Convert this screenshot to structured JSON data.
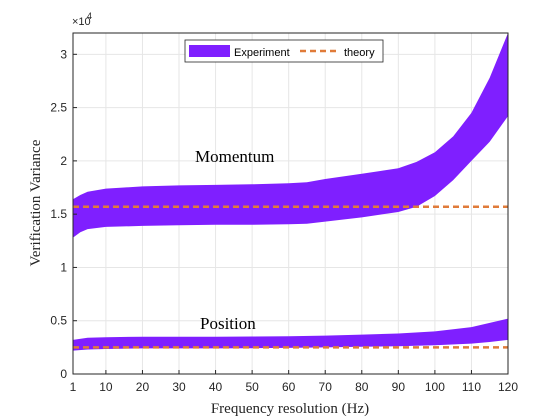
{
  "chart_data": {
    "type": "area",
    "xlabel": "Frequency resolution (Hz)",
    "ylabel": "Verification Variance",
    "exponent_label": "×10",
    "exponent_power": "4",
    "xlim": [
      1,
      120
    ],
    "ylim": [
      0,
      32000
    ],
    "x_ticks": [
      1,
      10,
      20,
      30,
      40,
      50,
      60,
      70,
      80,
      90,
      100,
      110,
      120
    ],
    "y_ticks": [
      0,
      5000,
      10000,
      15000,
      20000,
      25000,
      30000
    ],
    "y_tick_labels": [
      "0",
      "0.5",
      "1",
      "1.5",
      "2",
      "2.5",
      "3"
    ],
    "grid": true,
    "legend": {
      "placement": "top-center",
      "entries": [
        {
          "label": "Experiment",
          "color": "#7f1fff",
          "style": "band"
        },
        {
          "label": "theory",
          "color": "#e07b39",
          "style": "dashed"
        }
      ]
    },
    "annotations": [
      {
        "text": "Momentum",
        "x": 45,
        "y": 20600
      },
      {
        "text": "Position",
        "x": 40,
        "y": 4500
      }
    ],
    "series": [
      {
        "name": "Experiment",
        "group": "Momentum",
        "kind": "band",
        "color": "#7f1fff",
        "x": [
          1,
          3,
          5,
          10,
          15,
          20,
          30,
          40,
          50,
          60,
          65,
          70,
          80,
          90,
          95,
          100,
          105,
          110,
          115,
          120
        ],
        "upper": [
          16400,
          16800,
          17100,
          17400,
          17500,
          17600,
          17700,
          17750,
          17800,
          17900,
          18000,
          18300,
          18800,
          19300,
          19900,
          20800,
          22300,
          24500,
          27800,
          32000
        ],
        "lower": [
          12800,
          13300,
          13600,
          13800,
          13850,
          13900,
          13950,
          14000,
          14000,
          14050,
          14100,
          14300,
          14700,
          15200,
          15700,
          16700,
          18200,
          20000,
          21800,
          24200
        ]
      },
      {
        "name": "Experiment",
        "group": "Position",
        "kind": "band",
        "color": "#7f1fff",
        "x": [
          1,
          5,
          10,
          20,
          30,
          40,
          50,
          60,
          70,
          80,
          90,
          100,
          110,
          115,
          120
        ],
        "upper": [
          3200,
          3400,
          3450,
          3500,
          3500,
          3500,
          3520,
          3550,
          3600,
          3700,
          3800,
          4000,
          4400,
          4800,
          5200
        ],
        "lower": [
          2200,
          2300,
          2350,
          2400,
          2400,
          2400,
          2420,
          2450,
          2500,
          2550,
          2600,
          2700,
          2850,
          3000,
          3200
        ]
      },
      {
        "name": "theory",
        "group": "Momentum",
        "kind": "dashed",
        "color": "#e07b39",
        "x": [
          1,
          120
        ],
        "y": [
          15700,
          15700
        ]
      },
      {
        "name": "theory",
        "group": "Position",
        "kind": "dashed",
        "color": "#e07b39",
        "x": [
          1,
          120
        ],
        "y": [
          2500,
          2500
        ]
      }
    ]
  }
}
